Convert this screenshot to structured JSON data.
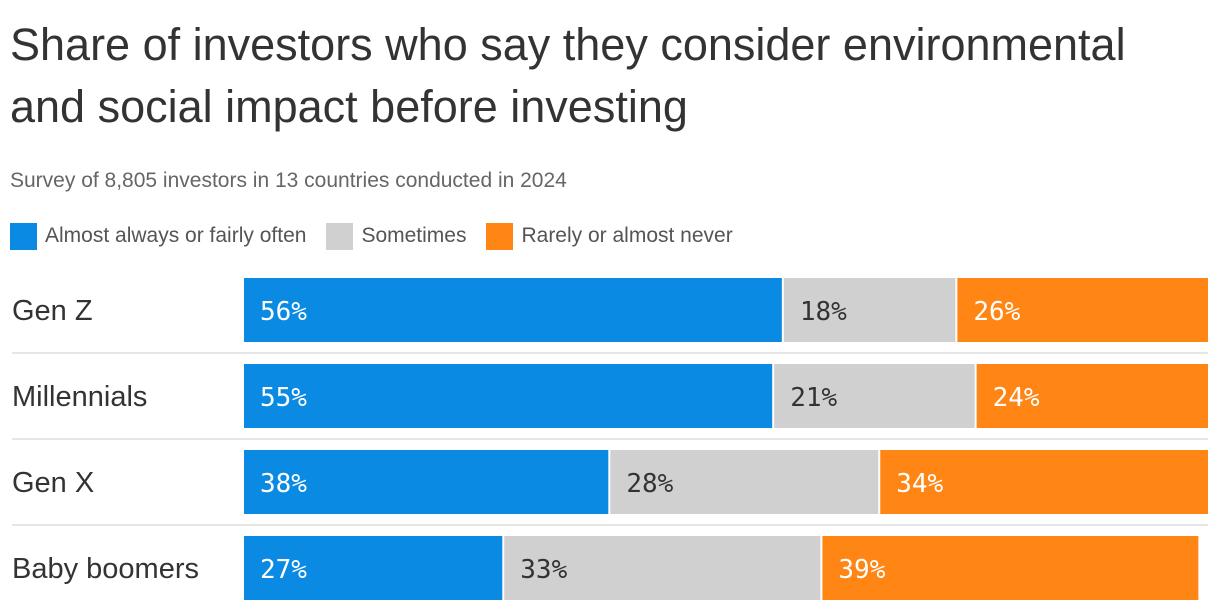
{
  "title": "Share of investors who say they consider environmental and social impact before investing",
  "subtitle": "Survey of 8,805 investors in 13 countries conducted in 2024",
  "colors": {
    "almost_always": "#0b8ae3",
    "sometimes": "#d0d0d0",
    "rarely": "#ff8614"
  },
  "chart_data": {
    "type": "bar",
    "orientation": "horizontal",
    "stacked": true,
    "categories": [
      "Gen Z",
      "Millennials",
      "Gen X",
      "Baby boomers"
    ],
    "series": [
      {
        "name": "Almost always or fairly often",
        "values": [
          56,
          55,
          38,
          27
        ],
        "color": "#0b8ae3",
        "label_color": "#ffffff"
      },
      {
        "name": "Sometimes",
        "values": [
          18,
          21,
          28,
          33
        ],
        "color": "#d0d0d0",
        "label_color": "#333333"
      },
      {
        "name": "Rarely or almost never",
        "values": [
          26,
          24,
          34,
          39
        ],
        "color": "#ff8614",
        "label_color": "#ffffff"
      }
    ],
    "value_suffix": "%",
    "xlim": [
      0,
      100
    ],
    "legend": "top-left",
    "grid": false
  }
}
